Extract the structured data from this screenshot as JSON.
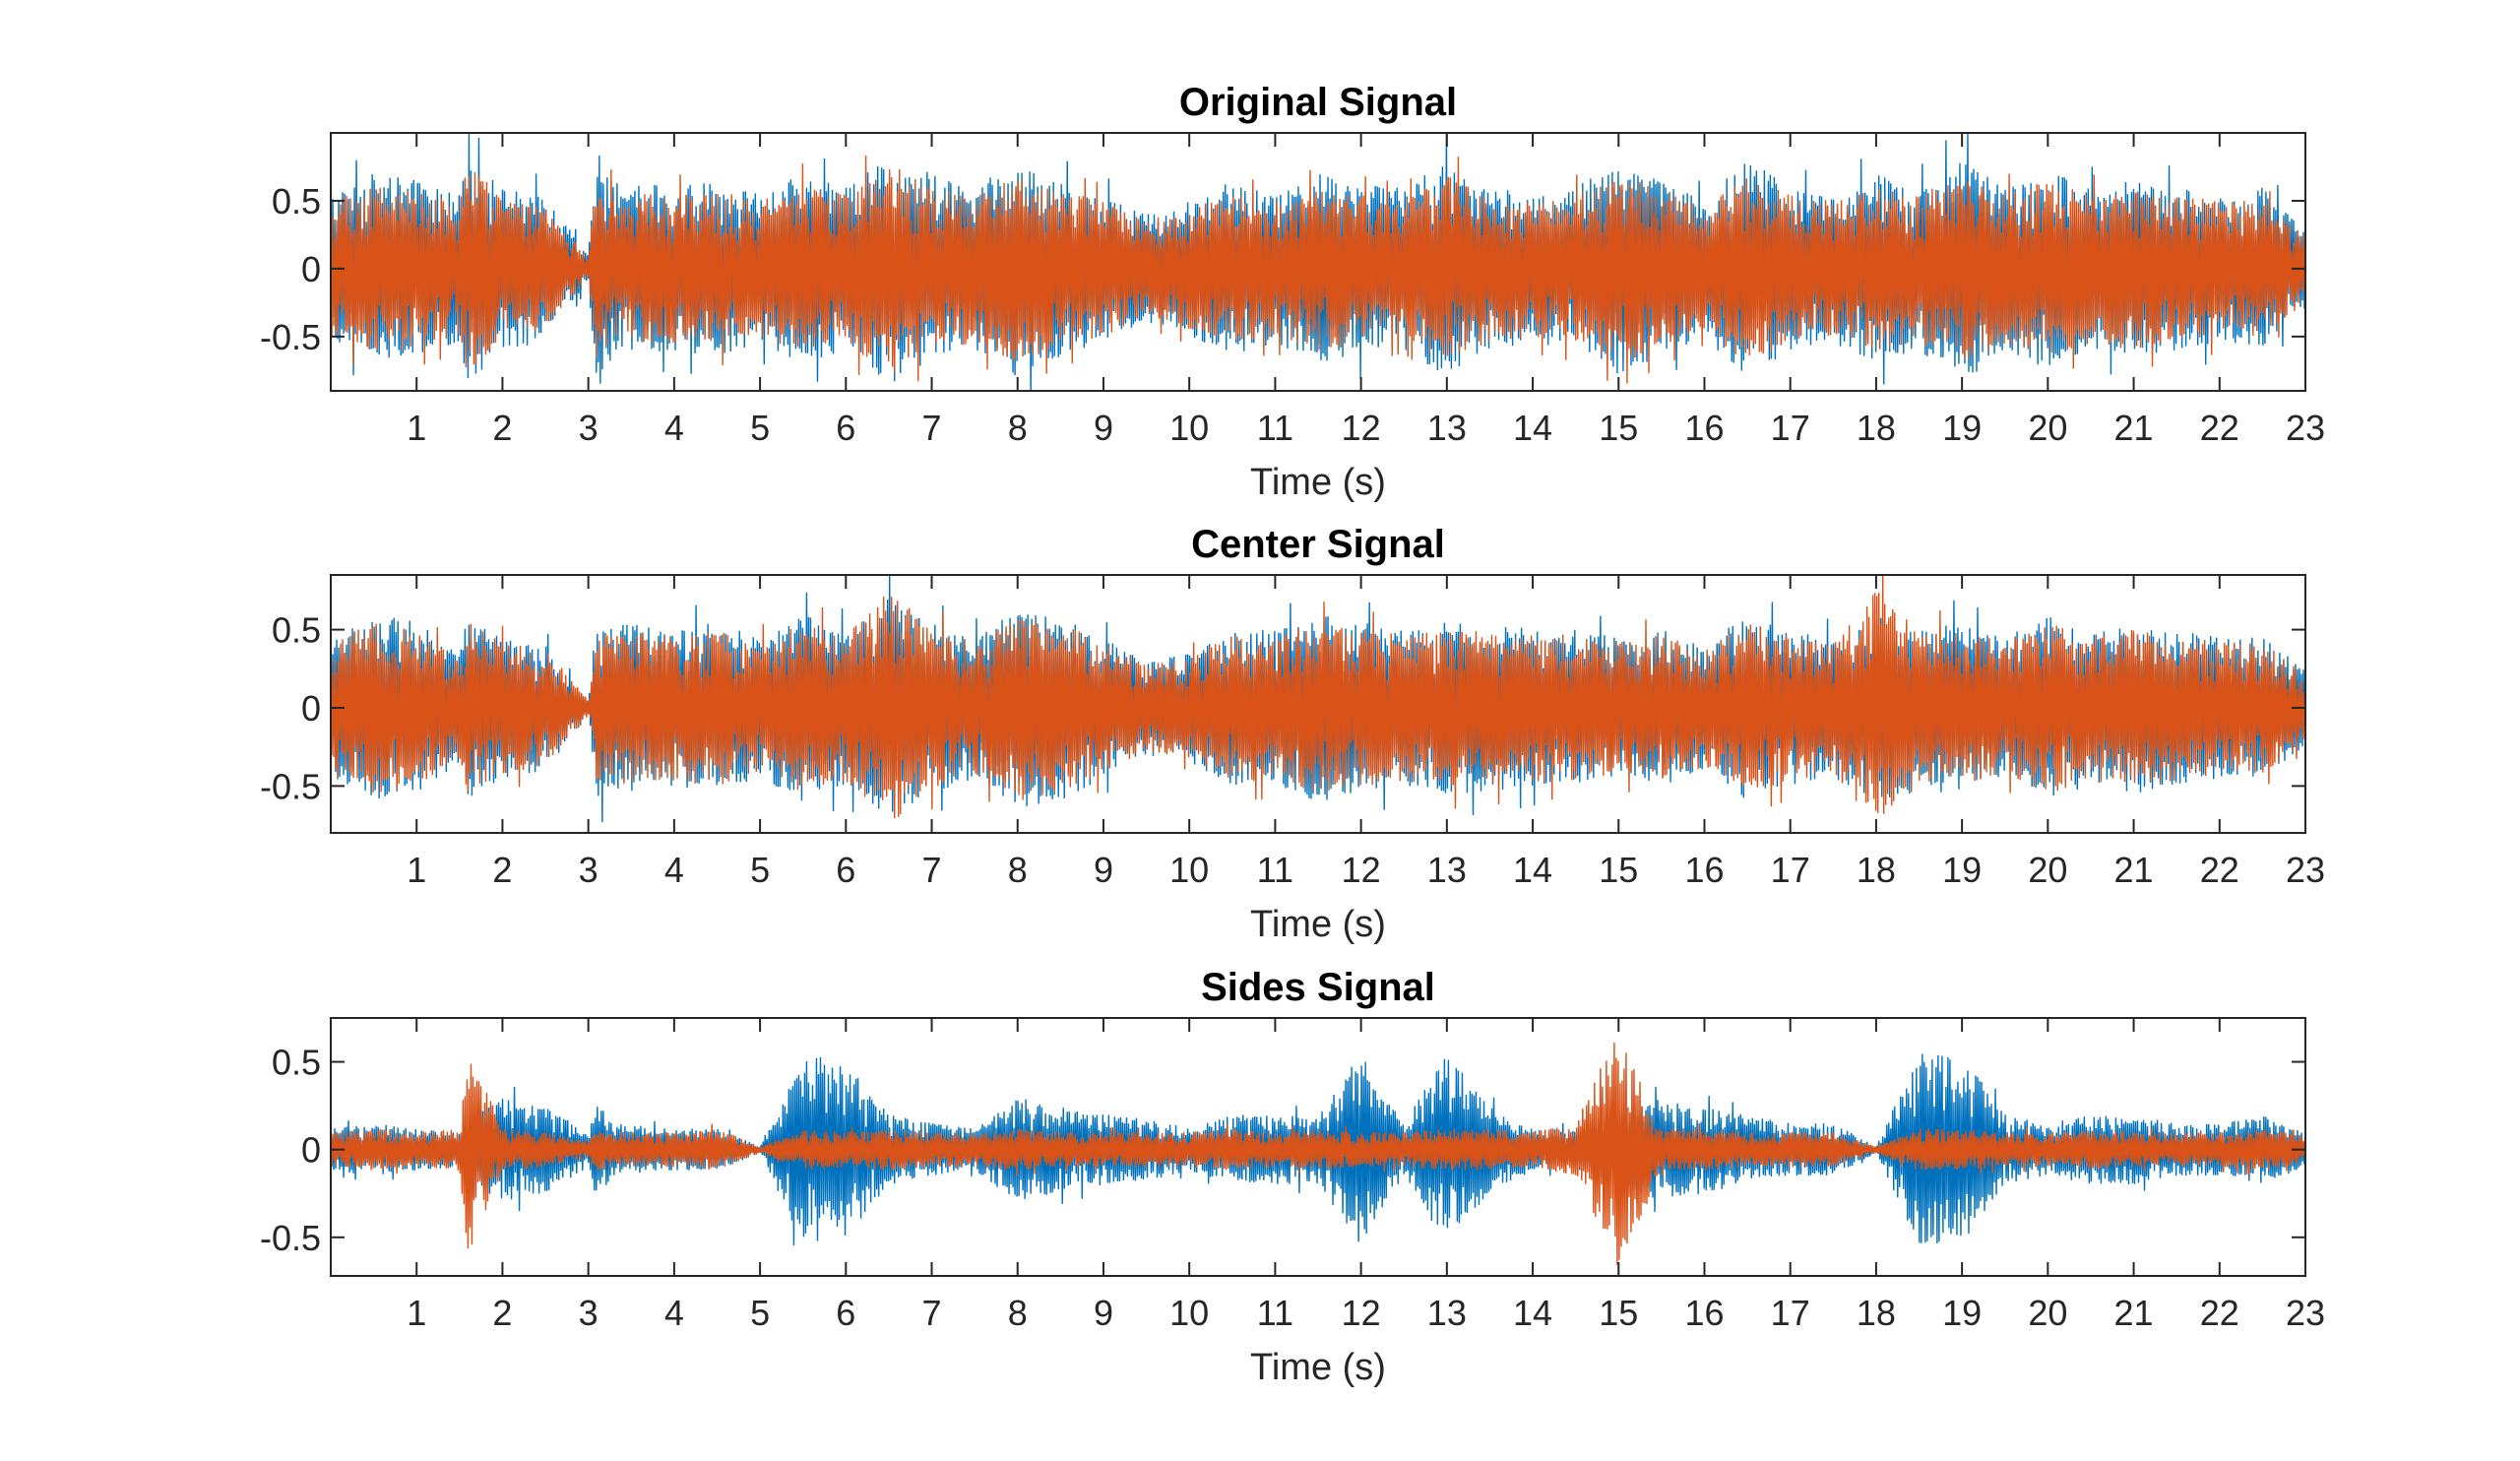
{
  "colors": {
    "series1": "#0072BD",
    "series2": "#D95319",
    "axis": "#262626",
    "background": "#ffffff"
  },
  "chart_data": [
    {
      "type": "line",
      "title": "Original Signal",
      "xlabel": "Time (s)",
      "ylabel": "",
      "xlim": [
        0,
        23
      ],
      "ylim": [
        -0.9,
        1.0
      ],
      "xticks": [
        1,
        2,
        3,
        4,
        5,
        6,
        7,
        8,
        9,
        10,
        11,
        12,
        13,
        14,
        15,
        16,
        17,
        18,
        19,
        20,
        21,
        22,
        23
      ],
      "yticks": [
        0.5,
        0,
        -0.5
      ],
      "ytick_labels": [
        "0.5",
        "0",
        "-0.5"
      ],
      "grid": false,
      "series": [
        {
          "color": "#0072BD",
          "envelope_time": [
            0,
            0.5,
            1.0,
            1.5,
            1.6,
            2.0,
            2.5,
            3.0,
            3.1,
            3.3,
            4.0,
            4.5,
            5.0,
            5.5,
            6.0,
            6.5,
            7.0,
            7.5,
            8.0,
            8.5,
            9.0,
            9.5,
            10.0,
            10.5,
            11.0,
            11.5,
            12.0,
            12.5,
            13.0,
            13.5,
            14.0,
            14.5,
            15.0,
            15.5,
            16.0,
            16.5,
            17.0,
            17.5,
            18.0,
            18.5,
            19.0,
            19.5,
            20.0,
            20.5,
            21.0,
            21.5,
            22.0,
            22.5,
            23.0
          ],
          "envelope_amplitude": [
            0.55,
            0.7,
            0.65,
            0.55,
            0.85,
            0.6,
            0.55,
            0.1,
            0.9,
            0.65,
            0.6,
            0.65,
            0.55,
            0.7,
            0.6,
            0.85,
            0.7,
            0.6,
            0.8,
            0.65,
            0.55,
            0.4,
            0.5,
            0.65,
            0.55,
            0.7,
            0.65,
            0.6,
            0.8,
            0.6,
            0.55,
            0.6,
            0.8,
            0.65,
            0.5,
            0.85,
            0.6,
            0.55,
            0.7,
            0.6,
            0.85,
            0.6,
            0.75,
            0.6,
            0.65,
            0.6,
            0.55,
            0.6,
            0.3
          ]
        },
        {
          "color": "#D95319",
          "envelope_time": [
            0,
            0.5,
            1.0,
            1.5,
            1.6,
            2.0,
            2.5,
            3.0,
            3.1,
            3.3,
            4.0,
            4.5,
            5.0,
            5.5,
            6.0,
            6.5,
            7.0,
            7.5,
            8.0,
            8.5,
            9.0,
            9.5,
            10.0,
            10.5,
            11.0,
            11.5,
            12.0,
            12.5,
            13.0,
            13.5,
            14.0,
            14.5,
            15.0,
            15.5,
            16.0,
            16.5,
            17.0,
            17.5,
            18.0,
            18.5,
            19.0,
            19.5,
            20.0,
            20.5,
            21.0,
            21.5,
            22.0,
            22.5,
            23.0
          ],
          "envelope_amplitude": [
            0.5,
            0.62,
            0.58,
            0.5,
            0.8,
            0.5,
            0.45,
            0.08,
            0.75,
            0.55,
            0.55,
            0.58,
            0.5,
            0.62,
            0.55,
            0.8,
            0.6,
            0.55,
            0.7,
            0.58,
            0.5,
            0.35,
            0.45,
            0.55,
            0.5,
            0.6,
            0.55,
            0.5,
            0.7,
            0.55,
            0.5,
            0.55,
            0.7,
            0.58,
            0.45,
            0.7,
            0.55,
            0.5,
            0.6,
            0.55,
            0.7,
            0.55,
            0.65,
            0.55,
            0.6,
            0.55,
            0.5,
            0.5,
            0.25
          ]
        }
      ]
    },
    {
      "type": "line",
      "title": "Center Signal",
      "xlabel": "Time (s)",
      "ylabel": "",
      "xlim": [
        0,
        23
      ],
      "ylim": [
        -0.8,
        0.85
      ],
      "xticks": [
        1,
        2,
        3,
        4,
        5,
        6,
        7,
        8,
        9,
        10,
        11,
        12,
        13,
        14,
        15,
        16,
        17,
        18,
        19,
        20,
        21,
        22,
        23
      ],
      "yticks": [
        0.5,
        0,
        -0.5
      ],
      "ytick_labels": [
        "0.5",
        "0",
        "-0.5"
      ],
      "grid": false,
      "series": [
        {
          "color": "#0072BD",
          "envelope_time": [
            0,
            0.5,
            1.0,
            1.5,
            1.6,
            2.0,
            2.5,
            3.0,
            3.1,
            3.3,
            4.0,
            4.5,
            5.0,
            5.5,
            6.0,
            6.5,
            7.0,
            7.5,
            8.0,
            8.5,
            9.0,
            9.5,
            10.0,
            10.5,
            11.0,
            11.5,
            12.0,
            12.5,
            13.0,
            13.5,
            14.0,
            14.5,
            15.0,
            15.5,
            16.0,
            16.5,
            17.0,
            17.5,
            18.0,
            18.5,
            19.0,
            19.5,
            20.0,
            20.5,
            21.0,
            21.5,
            22.0,
            22.5,
            23.0
          ],
          "envelope_amplitude": [
            0.45,
            0.6,
            0.55,
            0.35,
            0.6,
            0.45,
            0.4,
            0.05,
            0.6,
            0.55,
            0.5,
            0.55,
            0.45,
            0.6,
            0.5,
            0.7,
            0.55,
            0.45,
            0.65,
            0.6,
            0.45,
            0.3,
            0.35,
            0.5,
            0.5,
            0.6,
            0.55,
            0.5,
            0.55,
            0.55,
            0.5,
            0.5,
            0.45,
            0.5,
            0.4,
            0.6,
            0.5,
            0.45,
            0.6,
            0.55,
            0.55,
            0.45,
            0.6,
            0.5,
            0.55,
            0.5,
            0.45,
            0.45,
            0.25
          ]
        },
        {
          "color": "#D95319",
          "envelope_time": [
            0,
            0.5,
            1.0,
            1.5,
            1.6,
            2.0,
            2.5,
            3.0,
            3.1,
            3.3,
            4.0,
            4.5,
            5.0,
            5.5,
            6.0,
            6.5,
            7.0,
            7.5,
            8.0,
            8.5,
            9.0,
            9.5,
            10.0,
            10.5,
            11.0,
            11.5,
            12.0,
            12.5,
            13.0,
            13.5,
            14.0,
            14.5,
            15.0,
            15.5,
            16.0,
            16.5,
            17.0,
            17.5,
            18.0,
            18.5,
            19.0,
            19.5,
            20.0,
            20.5,
            21.0,
            21.5,
            22.0,
            22.5,
            23.0
          ],
          "envelope_amplitude": [
            0.42,
            0.55,
            0.5,
            0.32,
            0.55,
            0.42,
            0.38,
            0.05,
            0.55,
            0.5,
            0.47,
            0.5,
            0.42,
            0.55,
            0.47,
            0.75,
            0.52,
            0.42,
            0.6,
            0.55,
            0.42,
            0.28,
            0.32,
            0.47,
            0.47,
            0.55,
            0.5,
            0.47,
            0.52,
            0.5,
            0.47,
            0.47,
            0.42,
            0.47,
            0.38,
            0.55,
            0.47,
            0.42,
            0.8,
            0.5,
            0.5,
            0.42,
            0.55,
            0.47,
            0.5,
            0.47,
            0.42,
            0.42,
            0.22
          ]
        }
      ]
    },
    {
      "type": "line",
      "title": "Sides Signal",
      "xlabel": "Time (s)",
      "ylabel": "",
      "xlim": [
        0,
        23
      ],
      "ylim": [
        -0.72,
        0.75
      ],
      "xticks": [
        1,
        2,
        3,
        4,
        5,
        6,
        7,
        8,
        9,
        10,
        11,
        12,
        13,
        14,
        15,
        16,
        17,
        18,
        19,
        20,
        21,
        22,
        23
      ],
      "yticks": [
        0.5,
        0,
        -0.5
      ],
      "ytick_labels": [
        "0.5",
        "0",
        "-0.5"
      ],
      "grid": false,
      "series": [
        {
          "color": "#0072BD",
          "envelope_time": [
            0,
            0.5,
            1.0,
            1.5,
            1.6,
            2.0,
            2.5,
            3.0,
            3.1,
            3.3,
            4.0,
            4.5,
            5.0,
            5.5,
            6.0,
            6.5,
            7.0,
            7.5,
            8.0,
            8.5,
            9.0,
            9.5,
            10.0,
            10.5,
            11.0,
            11.5,
            12.0,
            12.5,
            13.0,
            13.5,
            14.0,
            14.5,
            15.0,
            15.5,
            16.0,
            16.5,
            17.0,
            17.5,
            18.0,
            18.5,
            19.0,
            19.5,
            20.0,
            20.5,
            21.0,
            21.5,
            22.0,
            22.5,
            23.0
          ],
          "envelope_amplitude": [
            0.12,
            0.15,
            0.12,
            0.1,
            0.2,
            0.3,
            0.25,
            0.1,
            0.3,
            0.15,
            0.12,
            0.12,
            0.02,
            0.55,
            0.5,
            0.2,
            0.15,
            0.12,
            0.3,
            0.25,
            0.2,
            0.18,
            0.12,
            0.2,
            0.2,
            0.2,
            0.55,
            0.15,
            0.55,
            0.25,
            0.12,
            0.12,
            0.2,
            0.3,
            0.25,
            0.2,
            0.15,
            0.15,
            0.02,
            0.55,
            0.55,
            0.2,
            0.15,
            0.2,
            0.2,
            0.15,
            0.15,
            0.2,
            0.1
          ]
        },
        {
          "color": "#D95319",
          "envelope_time": [
            0,
            0.5,
            1.0,
            1.5,
            1.6,
            2.0,
            2.5,
            3.0,
            3.1,
            3.3,
            4.0,
            4.5,
            5.0,
            5.5,
            6.0,
            6.5,
            7.0,
            7.5,
            8.0,
            8.5,
            9.0,
            9.5,
            10.0,
            10.5,
            11.0,
            11.5,
            12.0,
            12.5,
            13.0,
            13.5,
            14.0,
            14.5,
            15.0,
            15.5,
            16.0,
            16.5,
            17.0,
            17.5,
            18.0,
            18.5,
            19.0,
            19.5,
            20.0,
            20.5,
            21.0,
            21.5,
            22.0,
            22.5,
            23.0
          ],
          "envelope_amplitude": [
            0.1,
            0.12,
            0.1,
            0.12,
            0.6,
            0.12,
            0.1,
            0.05,
            0.12,
            0.1,
            0.1,
            0.12,
            0.02,
            0.12,
            0.1,
            0.12,
            0.1,
            0.1,
            0.12,
            0.1,
            0.1,
            0.1,
            0.1,
            0.12,
            0.1,
            0.12,
            0.1,
            0.1,
            0.12,
            0.12,
            0.1,
            0.15,
            0.7,
            0.12,
            0.12,
            0.1,
            0.1,
            0.1,
            0.02,
            0.12,
            0.12,
            0.1,
            0.1,
            0.12,
            0.1,
            0.1,
            0.1,
            0.12,
            0.08
          ]
        }
      ]
    }
  ]
}
